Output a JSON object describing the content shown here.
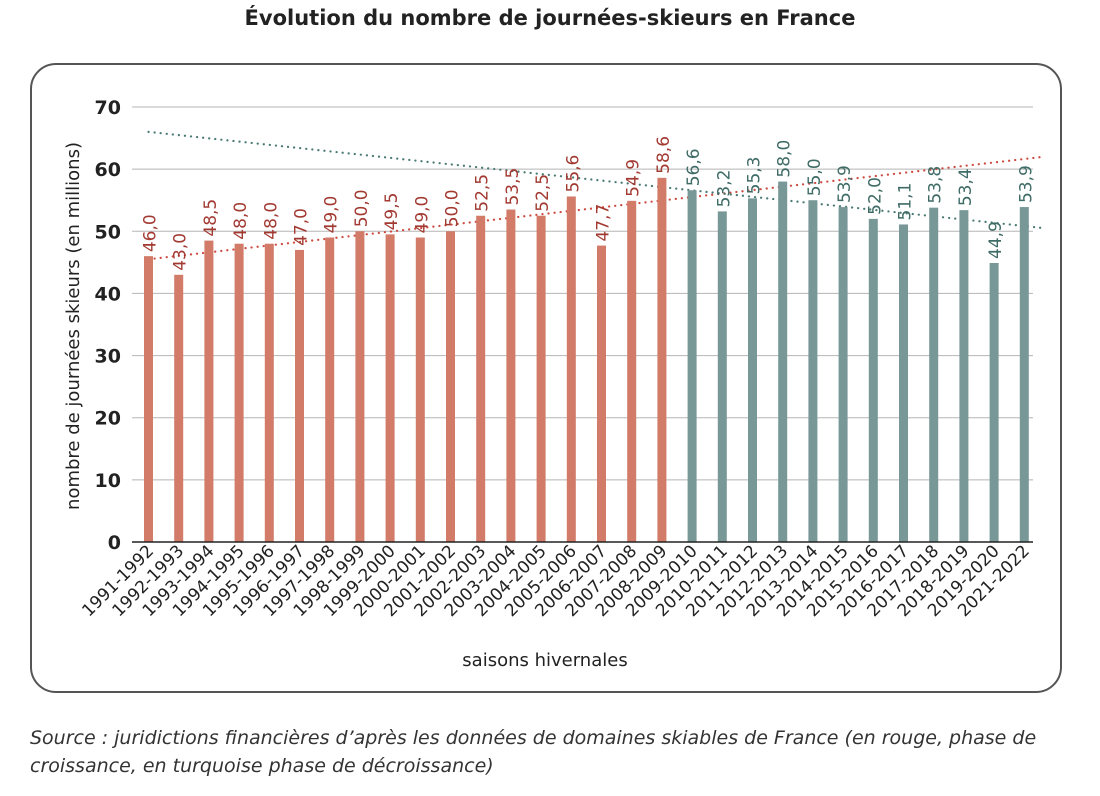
{
  "title": "Évolution du nombre de journées-skieurs en France",
  "source": "Source : juridictions financières d’après les données de domaines skiables de France (en rouge, phase de croissance, en turquoise phase de décroissance)",
  "colors": {
    "growth_bar": "#d27b68",
    "growth_label": "#a23a32",
    "decline_bar": "#789797",
    "decline_label": "#3f6b66",
    "growth_trend": "#cc4a40",
    "decline_trend": "#4a7a74",
    "grid": "#b5b5b5",
    "axis": "#222222"
  },
  "chart_data": {
    "type": "bar",
    "title": "Évolution du nombre de journées-skieurs en France",
    "xlabel": "saisons hivernales",
    "ylabel": "nombre de journées skieurs (en millions)",
    "ylim": [
      0,
      70
    ],
    "yticks": [
      0,
      10,
      20,
      30,
      40,
      50,
      60,
      70
    ],
    "grid": true,
    "categories": [
      "1991-1992",
      "1992-1993",
      "1993-1994",
      "1994-1995",
      "1995-1996",
      "1996-1997",
      "1997-1998",
      "1998-1999",
      "1999-2000",
      "2000-2001",
      "2001-2002",
      "2002-2003",
      "2003-2004",
      "2004-2005",
      "2005-2006",
      "2006-2007",
      "2007-2008",
      "2008-2009",
      "2009-2010",
      "2010-2011",
      "2011-2012",
      "2012-2013",
      "2013-2014",
      "2014-2015",
      "2015-2016",
      "2016-2017",
      "2017-2018",
      "2018-2019",
      "2019-2020",
      "2021-2022"
    ],
    "values": [
      46.0,
      43.0,
      48.5,
      48.0,
      48.0,
      47.0,
      49.0,
      50.0,
      49.5,
      49.0,
      50.0,
      52.5,
      53.5,
      52.5,
      55.6,
      47.7,
      54.9,
      58.6,
      56.6,
      53.2,
      55.3,
      58.0,
      55.0,
      53.9,
      52.0,
      51.1,
      53.8,
      53.4,
      44.9,
      53.9
    ],
    "value_labels": [
      "46,0",
      "43,0",
      "48,5",
      "48,0",
      "48,0",
      "47,0",
      "49,0",
      "50,0",
      "49,5",
      "49,0",
      "50,0",
      "52,5",
      "53,5",
      "52,5",
      "55,6",
      "47,7",
      "54,9",
      "58,6",
      "56,6",
      "53,2",
      "55,3",
      "58,0",
      "55,0",
      "53,9",
      "52,0",
      "51,1",
      "53,8",
      "53,4",
      "44,9",
      "53,9"
    ],
    "phase": [
      "growth",
      "growth",
      "growth",
      "growth",
      "growth",
      "growth",
      "growth",
      "growth",
      "growth",
      "growth",
      "growth",
      "growth",
      "growth",
      "growth",
      "growth",
      "growth",
      "growth",
      "growth",
      "decline",
      "decline",
      "decline",
      "decline",
      "decline",
      "decline",
      "decline",
      "decline",
      "decline",
      "decline",
      "decline",
      "decline"
    ],
    "trendlines": [
      {
        "phase": "growth",
        "style": "dotted",
        "from": {
          "category": "1991-1992",
          "y": 45.5
        },
        "to": {
          "category": "2021-2022",
          "y": 62
        }
      },
      {
        "phase": "decline",
        "style": "dotted",
        "from": {
          "category": "1991-1992",
          "y": 66
        },
        "to": {
          "category": "2021-2022",
          "y": 50.5
        }
      }
    ]
  }
}
